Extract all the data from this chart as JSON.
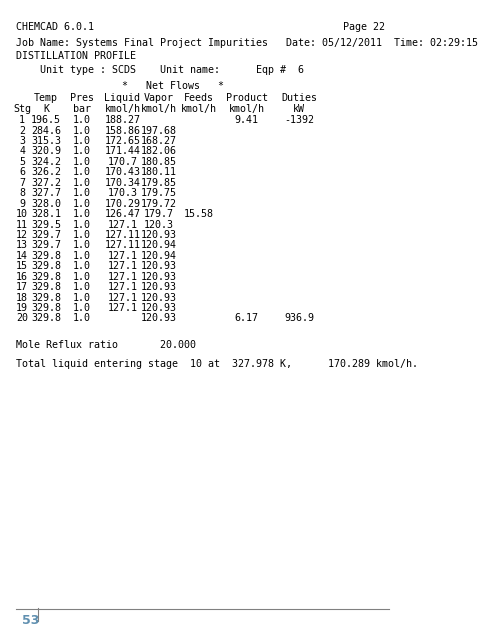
{
  "header1": "CHEMCAD 6.0.1",
  "header1_right": "Page 22",
  "header2": "Job Name: Systems Final Project Impurities   Date: 05/12/2011  Time: 02:29:15",
  "header3": "DISTILLATION PROFILE",
  "unit_line": "Unit type : SCDS    Unit name:      Eqp #  6",
  "col_header1": "*   Net Flows   *",
  "col_headers": [
    "Temp",
    "Pres",
    "Liquid",
    "Vapor",
    "Feeds",
    "Product",
    "Duties"
  ],
  "col_headers2": [
    "K",
    "bar",
    "kmol/h",
    "kmol/h",
    "kmol/h",
    "kmol/h",
    "kW"
  ],
  "stg_label": "Stg",
  "table_data": [
    [
      1,
      196.5,
      1.0,
      188.27,
      "",
      "",
      9.41,
      -1392
    ],
    [
      2,
      284.6,
      1.0,
      158.86,
      197.68,
      "",
      "",
      ""
    ],
    [
      3,
      315.3,
      1.0,
      172.65,
      168.27,
      "",
      "",
      ""
    ],
    [
      4,
      320.9,
      1.0,
      171.44,
      182.06,
      "",
      "",
      ""
    ],
    [
      5,
      324.2,
      1.0,
      170.7,
      180.85,
      "",
      "",
      ""
    ],
    [
      6,
      326.2,
      1.0,
      170.43,
      180.11,
      "",
      "",
      ""
    ],
    [
      7,
      327.2,
      1.0,
      170.34,
      179.85,
      "",
      "",
      ""
    ],
    [
      8,
      327.7,
      1.0,
      170.3,
      179.75,
      "",
      "",
      ""
    ],
    [
      9,
      328.0,
      1.0,
      170.29,
      179.72,
      "",
      "",
      ""
    ],
    [
      10,
      328.1,
      1.0,
      126.47,
      179.7,
      15.58,
      "",
      ""
    ],
    [
      11,
      329.5,
      1.0,
      127.1,
      120.3,
      "",
      "",
      ""
    ],
    [
      12,
      329.7,
      1.0,
      127.11,
      120.93,
      "",
      "",
      ""
    ],
    [
      13,
      329.7,
      1.0,
      127.11,
      120.94,
      "",
      "",
      ""
    ],
    [
      14,
      329.8,
      1.0,
      127.1,
      120.94,
      "",
      "",
      ""
    ],
    [
      15,
      329.8,
      1.0,
      127.1,
      120.93,
      "",
      "",
      ""
    ],
    [
      16,
      329.8,
      1.0,
      127.1,
      120.93,
      "",
      "",
      ""
    ],
    [
      17,
      329.8,
      1.0,
      127.1,
      120.93,
      "",
      "",
      ""
    ],
    [
      18,
      329.8,
      1.0,
      127.1,
      120.93,
      "",
      "",
      ""
    ],
    [
      19,
      329.8,
      1.0,
      127.1,
      120.93,
      "",
      "",
      ""
    ],
    [
      20,
      329.8,
      1.0,
      "",
      120.93,
      "",
      6.17,
      936.9
    ]
  ],
  "footer1": "Mole Reflux ratio       20.000",
  "footer2": "Total liquid entering stage  10 at  327.978 K,      170.289 kmol/h.",
  "page_num": "53",
  "bg_color": "#ffffff",
  "text_color": "#000000",
  "mono_font": "DejaVu Sans Mono",
  "font_size": 7.2,
  "page_num_color": "#6090b0",
  "line_color": "#808080"
}
